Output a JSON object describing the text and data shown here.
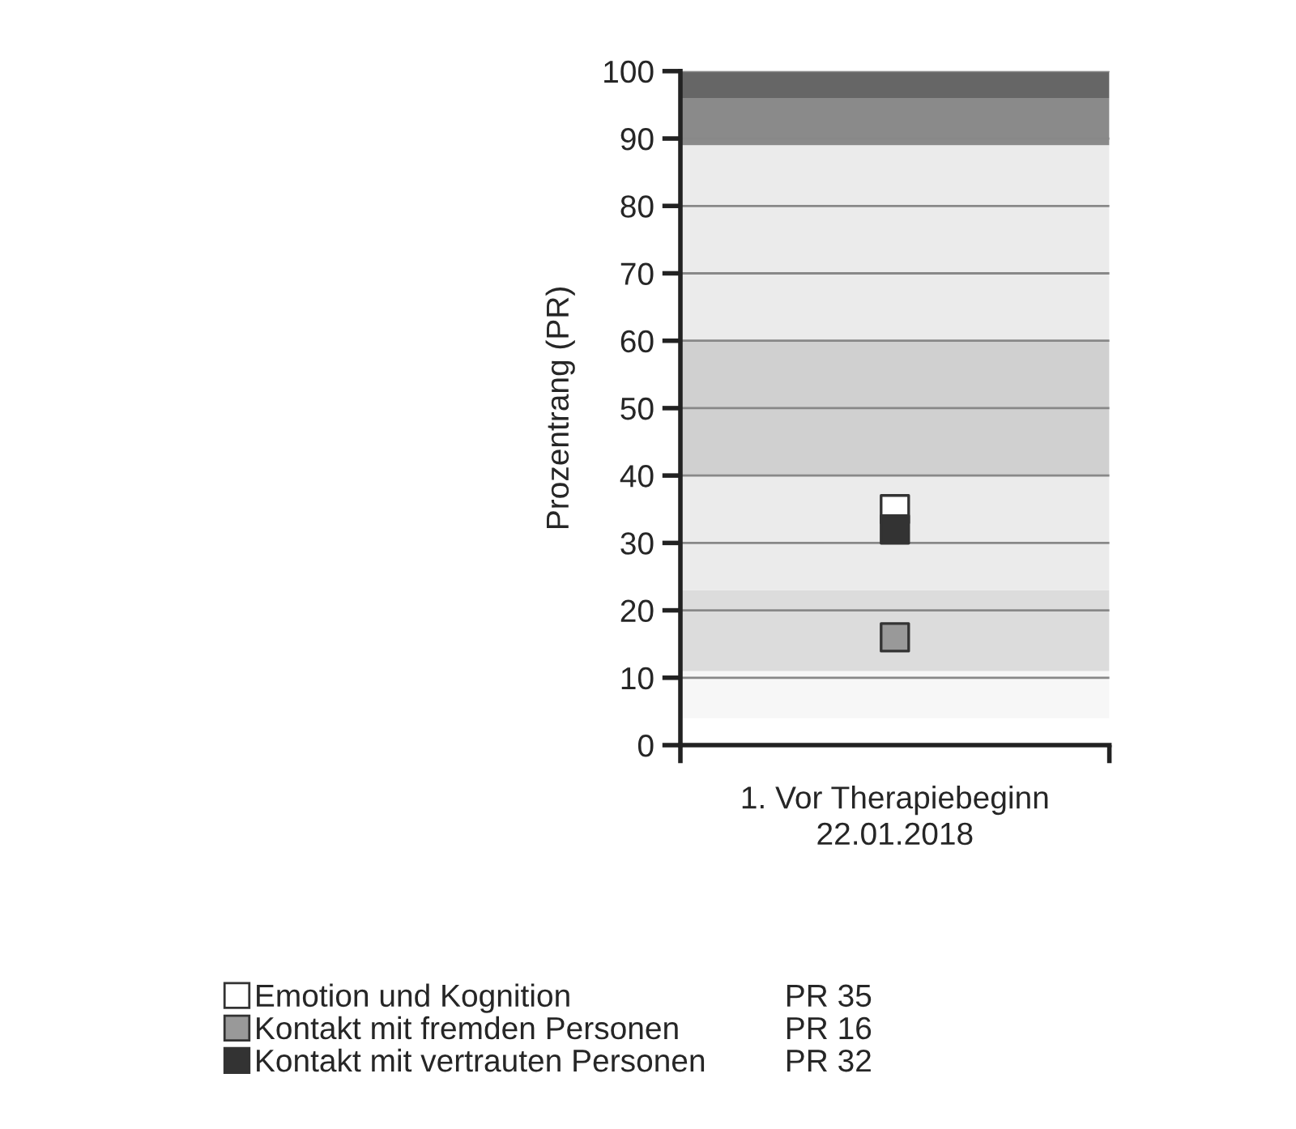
{
  "chart_data": {
    "type": "scatter",
    "ylabel": "Prozentrang (PR)",
    "categories": [
      "1. Vor Therapiebeginn\n22.01.2018"
    ],
    "series": [
      {
        "name": "Emotion und Kognition",
        "color": "#ffffff",
        "values": [
          35
        ]
      },
      {
        "name": "Kontakt mit fremden Personen",
        "color": "#999999",
        "values": [
          16
        ]
      },
      {
        "name": "Kontakt mit vertrauten Personen",
        "color": "#333333",
        "values": [
          32
        ]
      }
    ],
    "annotations": [
      "PR 35",
      "PR 16",
      "PR 32"
    ],
    "ylim": [
      0,
      100
    ],
    "yticks": [
      0,
      10,
      20,
      30,
      40,
      50,
      60,
      70,
      80,
      90,
      100
    ],
    "bands": [
      {
        "axis": "y",
        "from": 4,
        "to": 11,
        "color": "#f7f7f7"
      },
      {
        "axis": "y",
        "from": 11,
        "to": 23,
        "color": "#dcdcdc"
      },
      {
        "axis": "y",
        "from": 23,
        "to": 40,
        "color": "#ebebeb"
      },
      {
        "axis": "y",
        "from": 40,
        "to": 60,
        "color": "#d0d0d0"
      },
      {
        "axis": "y",
        "from": 60,
        "to": 89,
        "color": "#ebebeb"
      },
      {
        "axis": "y",
        "from": 89,
        "to": 96,
        "color": "#8a8a8a"
      },
      {
        "axis": "y",
        "from": 96,
        "to": 100,
        "color": "#666666"
      }
    ],
    "grid": "y",
    "marker": "square",
    "legend": "bottom left"
  }
}
